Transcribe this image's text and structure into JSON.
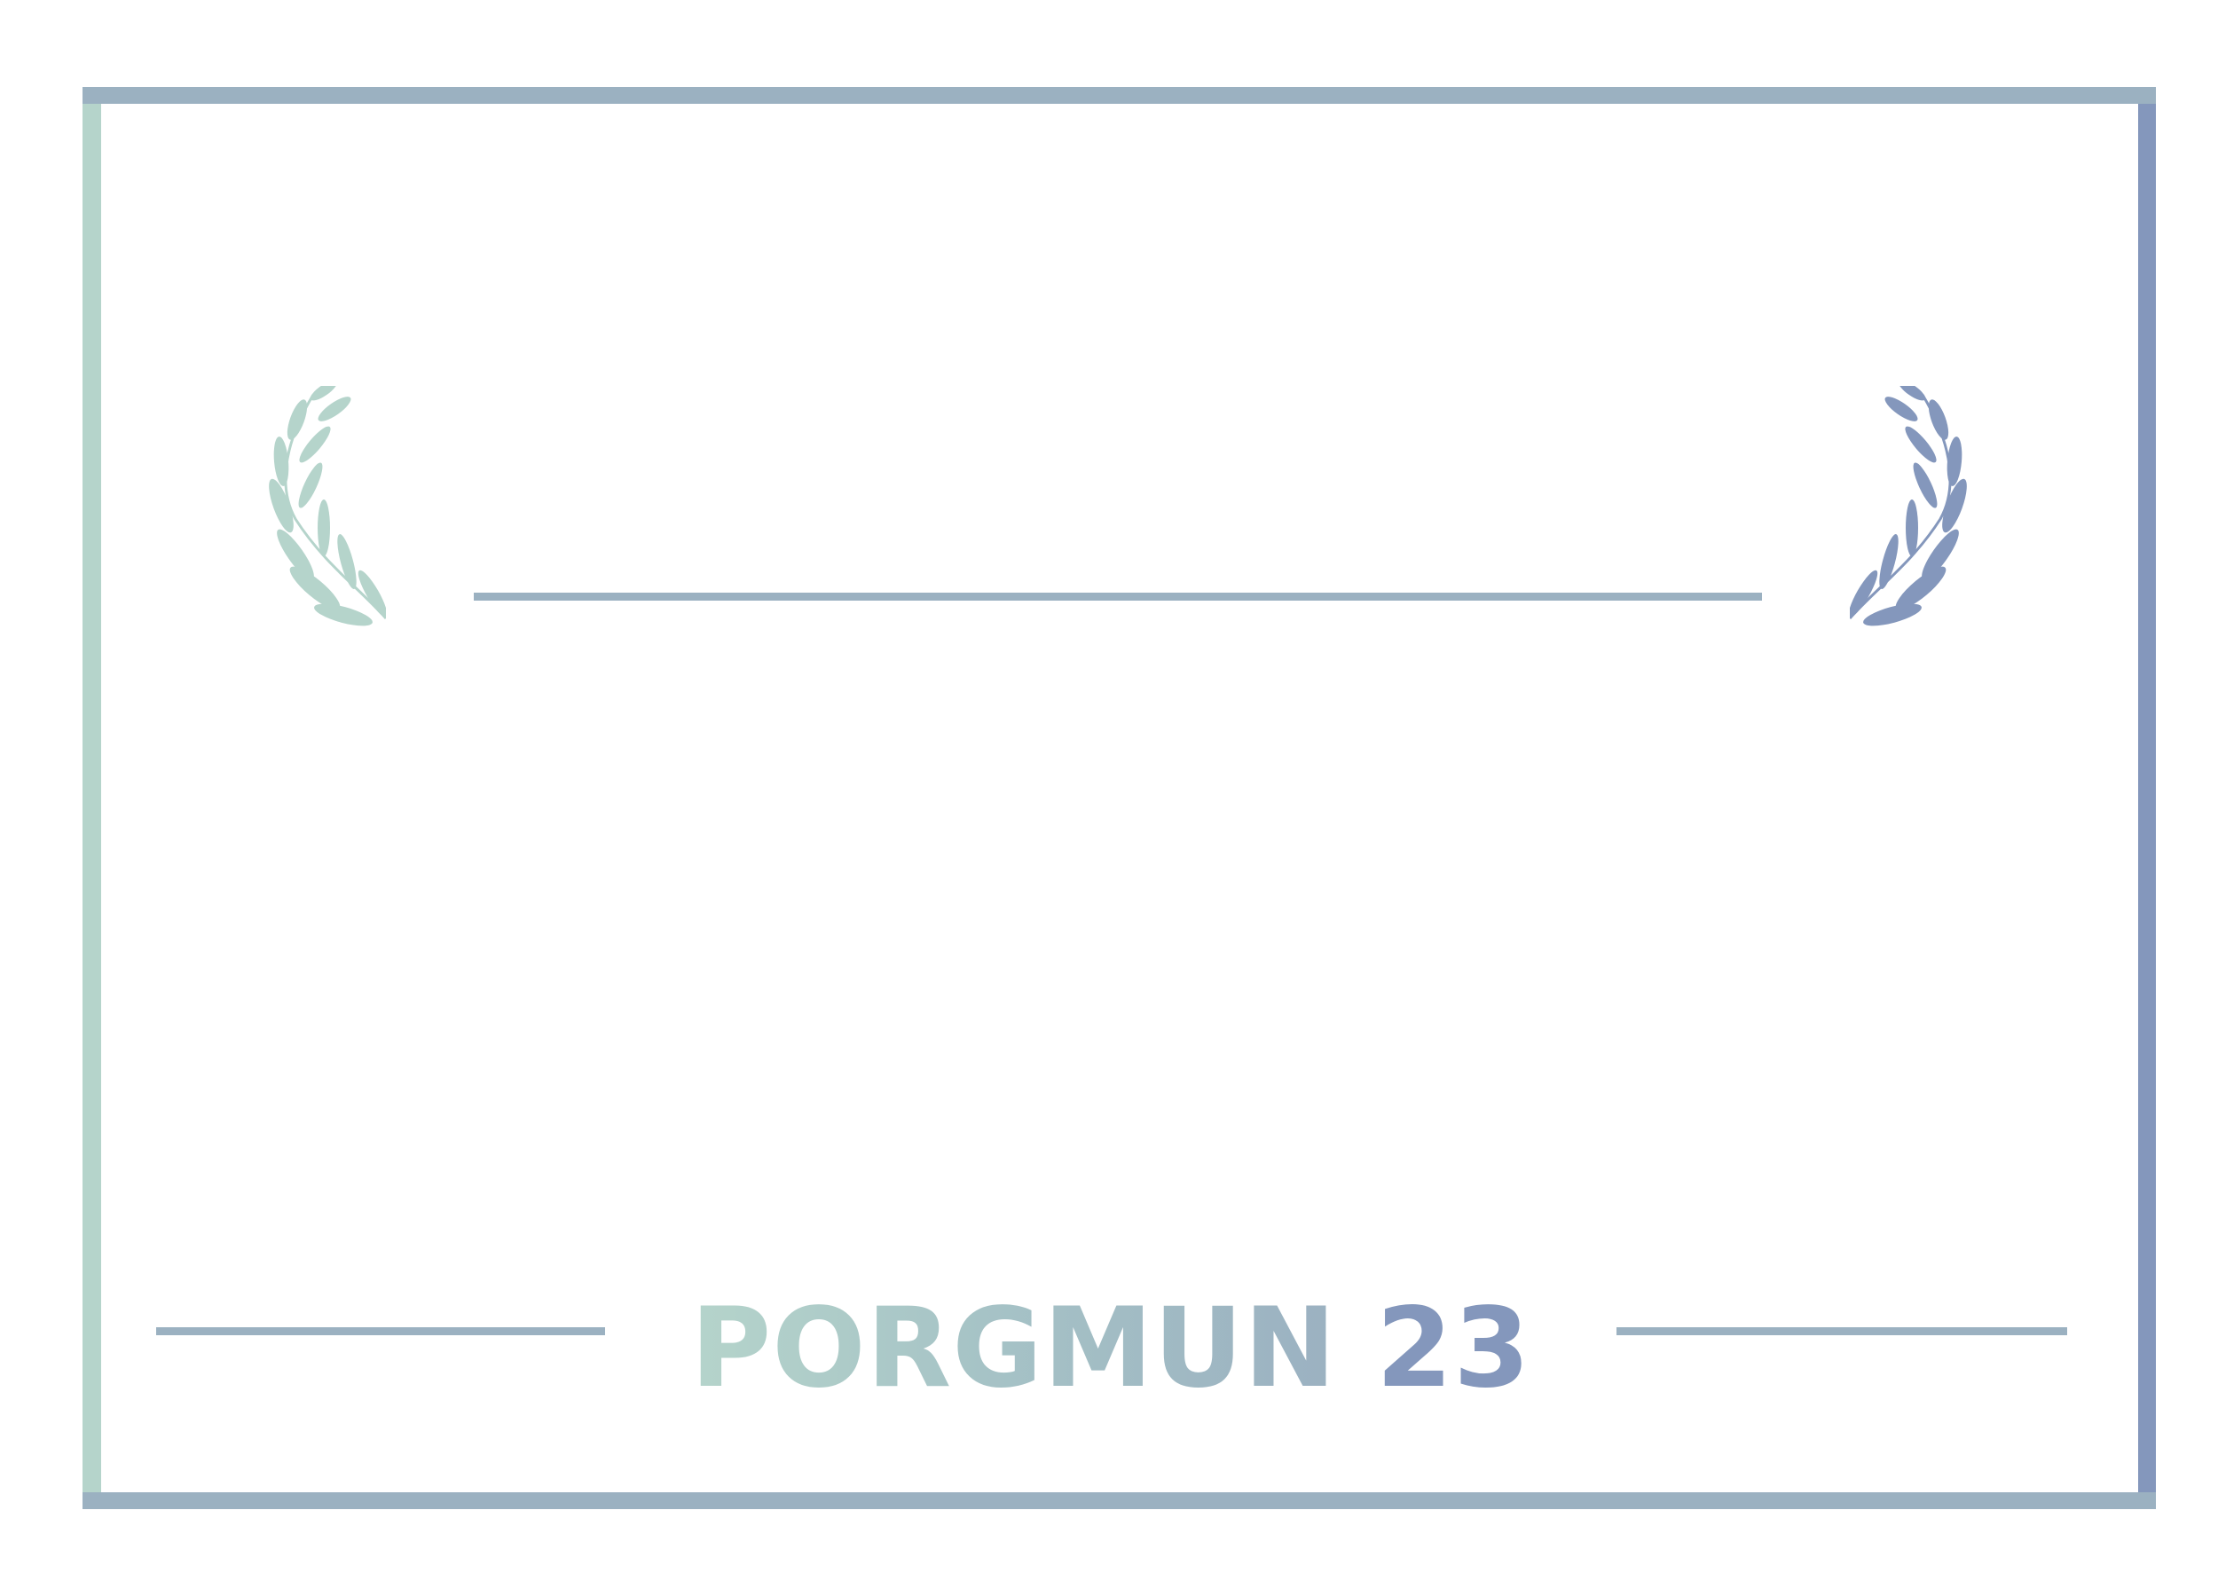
{
  "certificate": {
    "title_word": "PORGMUN",
    "title_number": "23"
  },
  "colors": {
    "mint": "#b5d4cb",
    "slate_blue": "#9bb1c1",
    "periwinkle": "#8497bc",
    "background": "#ffffff"
  },
  "icons": {
    "left": "laurel-branch-icon",
    "right": "laurel-branch-icon"
  }
}
